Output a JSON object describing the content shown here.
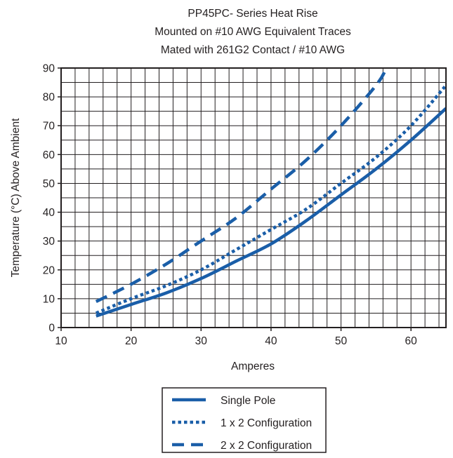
{
  "chart_data": {
    "type": "line",
    "title_lines": [
      "PP45PC- Series Heat Rise",
      "Mounted on #10 AWG Equivalent Traces",
      "Mated with 261G2 Contact / #10 AWG"
    ],
    "xlabel": "Amperes",
    "ylabel": "Temperature (°C) Above Ambient",
    "xlim": [
      10,
      65
    ],
    "ylim": [
      0,
      90
    ],
    "x_ticks": [
      10,
      20,
      30,
      40,
      50,
      60
    ],
    "y_ticks": [
      0,
      10,
      20,
      30,
      40,
      50,
      60,
      70,
      80,
      90
    ],
    "grid": true,
    "legend_position": "bottom-center",
    "line_color": "#1a5ea8",
    "series": [
      {
        "name": "Single Pole",
        "style": "solid",
        "x": [
          15,
          20,
          25,
          30,
          35,
          40,
          45,
          50,
          55,
          60,
          65
        ],
        "y": [
          4,
          8,
          12,
          17,
          23,
          29,
          37,
          46,
          55,
          65,
          76
        ]
      },
      {
        "name": "1 x 2 Configuration",
        "style": "dotted",
        "x": [
          15,
          20,
          25,
          30,
          35,
          40,
          45,
          50,
          55,
          60,
          65
        ],
        "y": [
          5,
          10,
          14.5,
          20,
          27,
          34,
          41,
          50,
          59,
          70,
          84
        ]
      },
      {
        "name": "2 x 2 Configuration",
        "style": "dashed",
        "x": [
          15,
          20,
          25,
          30,
          35,
          40,
          45,
          50,
          55,
          56.5
        ],
        "y": [
          9,
          15,
          22,
          30,
          38,
          48,
          58,
          70,
          84,
          90
        ]
      }
    ]
  }
}
